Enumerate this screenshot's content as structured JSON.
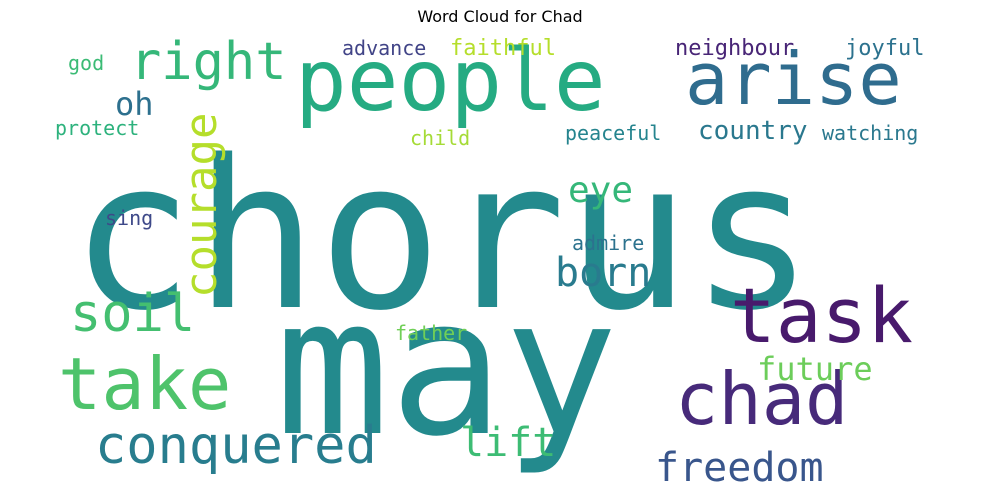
{
  "chart_data": {
    "type": "wordcloud",
    "title": "Word Cloud for Chad",
    "colormap": "viridis",
    "background": "#ffffff",
    "words": [
      {
        "text": "chorus",
        "weight": 1.0,
        "color": "#238a8d",
        "vertical": false
      },
      {
        "text": "may",
        "weight": 0.9,
        "color": "#238a8d",
        "vertical": false
      },
      {
        "text": "people",
        "weight": 0.62,
        "color": "#25ab82",
        "vertical": false
      },
      {
        "text": "arise",
        "weight": 0.48,
        "color": "#2f6c8e",
        "vertical": false
      },
      {
        "text": "chad",
        "weight": 0.5,
        "color": "#472a7a",
        "vertical": false
      },
      {
        "text": "task",
        "weight": 0.42,
        "color": "#481a6c",
        "vertical": false
      },
      {
        "text": "take",
        "weight": 0.42,
        "color": "#4ec36b",
        "vertical": false
      },
      {
        "text": "right",
        "weight": 0.3,
        "color": "#35b779",
        "vertical": false
      },
      {
        "text": "conquered",
        "weight": 0.3,
        "color": "#287d8e",
        "vertical": false
      },
      {
        "text": "soil",
        "weight": 0.3,
        "color": "#44bf70",
        "vertical": false
      },
      {
        "text": "courage",
        "weight": 0.26,
        "color": "#b5de2b",
        "vertical": true
      },
      {
        "text": "freedom",
        "weight": 0.22,
        "color": "#39568c",
        "vertical": false
      },
      {
        "text": "born",
        "weight": 0.22,
        "color": "#297b8e",
        "vertical": false
      },
      {
        "text": "lift",
        "weight": 0.22,
        "color": "#3dbc74",
        "vertical": false
      },
      {
        "text": "eye",
        "weight": 0.2,
        "color": "#35b779",
        "vertical": false
      },
      {
        "text": "oh",
        "weight": 0.18,
        "color": "#2d708e",
        "vertical": false
      },
      {
        "text": "future",
        "weight": 0.18,
        "color": "#6ccd5a",
        "vertical": false
      },
      {
        "text": "country",
        "weight": 0.14,
        "color": "#2a788e",
        "vertical": false
      },
      {
        "text": "neighbour",
        "weight": 0.11,
        "color": "#482576",
        "vertical": false
      },
      {
        "text": "joyful",
        "weight": 0.11,
        "color": "#2c728e",
        "vertical": false
      },
      {
        "text": "faithful",
        "weight": 0.11,
        "color": "#b5de2b",
        "vertical": false
      },
      {
        "text": "advance",
        "weight": 0.11,
        "color": "#414487",
        "vertical": false
      },
      {
        "text": "god",
        "weight": 0.11,
        "color": "#3bbb75",
        "vertical": false
      },
      {
        "text": "protect",
        "weight": 0.11,
        "color": "#2db27d",
        "vertical": false
      },
      {
        "text": "watching",
        "weight": 0.11,
        "color": "#2a788e",
        "vertical": false
      },
      {
        "text": "peaceful",
        "weight": 0.11,
        "color": "#25848e",
        "vertical": false
      },
      {
        "text": "child",
        "weight": 0.1,
        "color": "#a5db36",
        "vertical": false
      },
      {
        "text": "sing",
        "weight": 0.1,
        "color": "#3e4989",
        "vertical": false
      },
      {
        "text": "admire",
        "weight": 0.1,
        "color": "#2c728e",
        "vertical": false
      },
      {
        "text": "father",
        "weight": 0.1,
        "color": "#70cf57",
        "vertical": false
      }
    ]
  }
}
